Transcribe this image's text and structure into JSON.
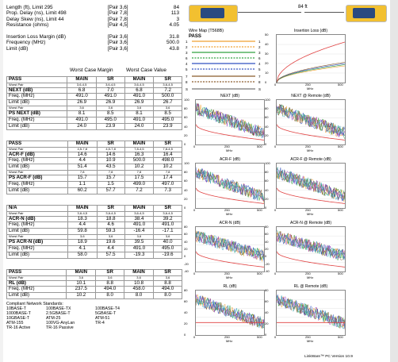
{
  "summary": [
    {
      "label": "Length (ft), Limit 295",
      "pair": "[Pair 3,6]",
      "value": "84"
    },
    {
      "label": "Prop. Delay (ns), Limit 498",
      "pair": "[Pair 7,8]",
      "value": "113"
    },
    {
      "label": "Delay Skew (ns), Limit 44",
      "pair": "[Pair 7,8]",
      "value": "3"
    },
    {
      "label": "Resistance (ohms)",
      "pair": "[Pair 4,5]",
      "value": "4.05"
    },
    {
      "label": "",
      "pair": "",
      "value": ""
    },
    {
      "label": "Insertion Loss Margin (dB)",
      "pair": "[Pair 3,6]",
      "value": "31.8"
    },
    {
      "label": "Frequency (MHz)",
      "pair": "[Pair 3,6]",
      "value": "500.0"
    },
    {
      "label": "Limit (dB)",
      "pair": "[Pair 3,6]",
      "value": "43.8"
    }
  ],
  "worst_case_margin": "Worst Case Margin",
  "worst_case_value": "Worst Case Value",
  "length_badge": "84 ft",
  "wiremap": {
    "title": "Wire Map (T568B)",
    "status": "PASS",
    "pins": [
      "1",
      "2",
      "3",
      "6",
      "4",
      "5",
      "7",
      "8",
      "S"
    ]
  },
  "blocks": [
    {
      "top": 96,
      "rows": [
        {
          "cells": [
            "PASS",
            "MAIN",
            "SR",
            "MAIN",
            "SR"
          ],
          "bold": true
        },
        {
          "cells": [
            "Worst Pair",
            "3,6-4,5",
            "3,6-4,5",
            "3,6-4,5",
            "3,6-4,5"
          ],
          "sm": true
        },
        {
          "cells": [
            "NEXT (dB)",
            "6.8",
            "7.0",
            "6.8",
            "7.2"
          ],
          "bold0": true
        },
        {
          "cells": [
            "Freq. (MHz)",
            "491.0",
            "491.0",
            "491.0",
            "500.0"
          ]
        },
        {
          "cells": [
            "Limit (dB)",
            "26.9",
            "26.9",
            "26.9",
            "26.7"
          ]
        },
        {
          "cells": [
            "Worst Pair",
            "3,6",
            "3,6",
            "3,6",
            "3,6"
          ],
          "sm": true
        },
        {
          "cells": [
            "PS NEXT (dB)",
            "8.1",
            "8.5",
            "8.1",
            "8.5"
          ],
          "bold0": true
        },
        {
          "cells": [
            "Freq. (MHz)",
            "491.0",
            "495.0",
            "491.0",
            "495.0"
          ]
        },
        {
          "cells": [
            "Limit (dB)",
            "24.0",
            "23.9",
            "24.0",
            "23.9"
          ]
        }
      ]
    },
    {
      "top": 177,
      "rows": [
        {
          "cells": [
            "PASS",
            "MAIN",
            "SR",
            "MAIN",
            "SR"
          ],
          "bold": true
        },
        {
          "cells": [
            "Worst Pair",
            "4,5-7,8",
            "4,5-7,8",
            "7,8-4,5",
            "7,8-4,5"
          ],
          "sm": true
        },
        {
          "cells": [
            "ACR-F (dB)",
            "14.6",
            "14.6",
            "16.3",
            "16.4"
          ],
          "bold0": true
        },
        {
          "cells": [
            "Freq. (MHz)",
            "4.4",
            "10.9",
            "500.0",
            "498.0"
          ]
        },
        {
          "cells": [
            "Limit (dB)",
            "51.4",
            "43.5",
            "10.2",
            "10.2"
          ]
        },
        {
          "cells": [
            "Worst Pair",
            "7,8",
            "7,8",
            "7,8",
            "7,8"
          ],
          "sm": true
        },
        {
          "cells": [
            "PS ACR-F (dB)",
            "15.7",
            "15.7",
            "17.5",
            "17.4"
          ],
          "bold0": true
        },
        {
          "cells": [
            "Freq. (MHz)",
            "1.1",
            "1.5",
            "499.0",
            "497.0"
          ]
        },
        {
          "cells": [
            "Limit (dB)",
            "60.2",
            "57.7",
            "7.2",
            "7.3"
          ]
        }
      ]
    },
    {
      "top": 258,
      "rows": [
        {
          "cells": [
            "N/A",
            "MAIN",
            "SR",
            "MAIN",
            "SR"
          ],
          "bold": true
        },
        {
          "cells": [
            "Worst Pair",
            "3,6-4,5",
            "3,6-4,5",
            "3,6-4,5",
            "3,6-4,5"
          ],
          "sm": true
        },
        {
          "cells": [
            "ACR-N (dB)",
            "18.3",
            "18.8",
            "38.4",
            "39.2"
          ],
          "bold0": true
        },
        {
          "cells": [
            "Freq. (MHz)",
            "4.4",
            "4.6",
            "491.0",
            "491.0"
          ]
        },
        {
          "cells": [
            "Limit (dB)",
            "59.8",
            "59.3",
            "-16.4",
            "-17.1"
          ]
        },
        {
          "cells": [
            "Worst Pair",
            "3,6",
            "3,6",
            "3,6",
            "3,6"
          ],
          "sm": true
        },
        {
          "cells": [
            "PS ACR-N (dB)",
            "18.9",
            "19.6",
            "39.5",
            "40.0"
          ],
          "bold0": true
        },
        {
          "cells": [
            "Freq. (MHz)",
            "4.1",
            "4.4",
            "491.0",
            "495.0"
          ]
        },
        {
          "cells": [
            "Limit (dB)",
            "58.0",
            "57.5",
            "-19.3",
            "-19.6"
          ]
        }
      ]
    },
    {
      "top": 339,
      "rows": [
        {
          "cells": [
            "PASS",
            "MAIN",
            "SR",
            "MAIN",
            "SR"
          ],
          "bold": true
        },
        {
          "cells": [
            "Worst Pair",
            "3,6",
            "3,6",
            "3,6",
            "3,6"
          ],
          "sm": true
        },
        {
          "cells": [
            "RL (dB)",
            "10.1",
            "8.8",
            "10.8",
            "8.8"
          ],
          "bold0": true
        },
        {
          "cells": [
            "Freq. (MHz)",
            "237.5",
            "494.0",
            "458.0",
            "494.0"
          ]
        },
        {
          "cells": [
            "Limit (dB)",
            "10.2",
            "8.0",
            "8.0",
            "8.0"
          ]
        }
      ]
    }
  ],
  "standards": {
    "title": "Compliant Network Standards:",
    "items": [
      "10BASE-T",
      "100BASE-TX",
      "100BASE-T4",
      "1000BASE-T",
      "2.5GBASE-T",
      "5GBASE-T",
      "10GBASE-T",
      "ATM-25",
      "ATM-51",
      "ATM-155",
      "100VG-AnyLan",
      "TR-4",
      "TR-16 Active",
      "TR-16 Passive",
      ""
    ]
  },
  "footer": "LinkWare™ PC Version 10.9",
  "graphs": [
    {
      "title": "Insertion Loss (dB)",
      "yticks": [
        "50",
        "40",
        "30",
        "20",
        "10",
        "0"
      ],
      "xticks": [
        "0",
        "250",
        "500"
      ],
      "xlabel": "MHz"
    },
    {
      "title": "NEXT (dB)",
      "yticks": [
        "100",
        "80",
        "60",
        "40",
        "20",
        "0"
      ],
      "xticks": [
        "0",
        "250",
        "500"
      ],
      "xlabel": "MHz"
    },
    {
      "title": "NEXT @ Remote (dB)",
      "yticks": [
        "100",
        "80",
        "60",
        "40",
        "20",
        "0"
      ],
      "xticks": [
        "0",
        "250",
        "500"
      ],
      "xlabel": "MHz"
    },
    {
      "title": "ACR-F (dB)",
      "yticks": [
        "100",
        "80",
        "60",
        "40",
        "20",
        "0"
      ],
      "xticks": [
        "0",
        "250",
        "500"
      ],
      "xlabel": "MHz"
    },
    {
      "title": "ACR-F @ Remote (dB)",
      "yticks": [
        "100",
        "80",
        "60",
        "40",
        "20",
        "0"
      ],
      "xticks": [
        "0",
        "250",
        "500"
      ],
      "xlabel": "MHz"
    },
    {
      "title": "ACR-N (dB)",
      "yticks": [
        "80",
        "60",
        "40",
        "20",
        "0",
        "-20",
        "-40"
      ],
      "xticks": [
        "0",
        "250",
        "500"
      ],
      "xlabel": "MHz"
    },
    {
      "title": "ACR-N @ Remote (dB)",
      "yticks": [
        "80",
        "60",
        "40",
        "20",
        "0",
        "-20",
        "-40"
      ],
      "xticks": [
        "0",
        "250",
        "500"
      ],
      "xlabel": "MHz"
    },
    {
      "title": "RL (dB)",
      "yticks": [
        "80",
        "60",
        "40",
        "20",
        "0"
      ],
      "xticks": [
        "0",
        "250",
        "500"
      ],
      "xlabel": "MHz"
    },
    {
      "title": "RL @ Remote (dB)",
      "yticks": [
        "80",
        "60",
        "40",
        "20",
        "0"
      ],
      "xticks": [
        "0",
        "250",
        "500"
      ],
      "xlabel": "MHz"
    }
  ],
  "colors": {
    "orange": "#f0a030",
    "green": "#30a040",
    "blue": "#3050c0",
    "brown": "#8a5a2a",
    "red": "#e04040",
    "device": "#2a4a80"
  }
}
